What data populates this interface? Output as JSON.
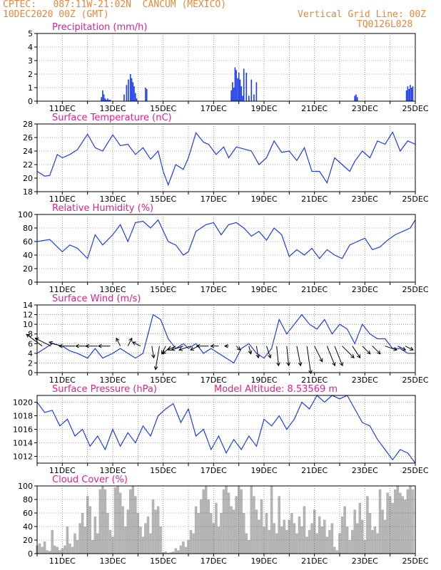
{
  "header": {
    "line1_left": "CPTEC:   087:11W-21:02N  CANCUM (MEXICO)",
    "line2_left": "10DEC2020 00Z (GMT)",
    "line1_right": "Vertical Grid Line: 00Z",
    "line2_right": "TQ0126L028"
  },
  "colors": {
    "header": "#e8873a",
    "title": "#e0208c",
    "line": "#1c3cf0",
    "cloud": "#b4b4b4",
    "grid": "#5a5a5a"
  },
  "x_axis": {
    "tick_labels": [
      "11DEC",
      "13DEC",
      "15DEC",
      "17DEC",
      "19DEC",
      "21DEC",
      "23DEC",
      "25DEC"
    ]
  },
  "chart_data": [
    {
      "type": "bar",
      "title": "Precipitation (mm/h)",
      "x_range": [
        "10DEC2020 00Z",
        "25DEC2020 00Z"
      ],
      "ylim": [
        0,
        5
      ],
      "yticks": [
        0,
        1,
        2,
        3,
        4,
        5
      ],
      "x_day": [
        2.55,
        2.6,
        2.65,
        2.7,
        2.75,
        2.8,
        2.85,
        2.9,
        3.45,
        3.55,
        3.62,
        3.7,
        3.75,
        3.8,
        3.85,
        3.9,
        3.95,
        4.3,
        4.35,
        7.7,
        7.75,
        7.8,
        7.85,
        7.9,
        7.95,
        8.0,
        8.05,
        8.1,
        8.15,
        8.2,
        8.3,
        8.4,
        8.5,
        8.6,
        8.7,
        12.6,
        12.65,
        12.7,
        14.65,
        14.7,
        14.75,
        14.8,
        14.85,
        14.9
      ],
      "values": [
        0.3,
        0.8,
        0.5,
        0.2,
        0.1,
        0.2,
        0.1,
        0.1,
        0.5,
        1.2,
        1.6,
        2.0,
        1.7,
        1.4,
        1.1,
        0.6,
        0.2,
        1.0,
        0.9,
        0.8,
        1.4,
        1.0,
        2.5,
        2.3,
        1.7,
        2.1,
        1.6,
        1.1,
        0.4,
        2.4,
        2.1,
        0.4,
        1.6,
        0.5,
        1.4,
        0.4,
        0.5,
        0.3,
        0.8,
        1.1,
        0.9,
        1.2,
        1.0,
        1.1
      ]
    },
    {
      "type": "line",
      "title": "Surface Temperature (nC)",
      "ylim": [
        18,
        28
      ],
      "yticks": [
        18,
        20,
        22,
        24,
        26,
        28
      ],
      "x_day": [
        0,
        0.3,
        0.5,
        0.8,
        1.0,
        1.3,
        1.6,
        2.0,
        2.3,
        2.6,
        3.0,
        3.3,
        3.6,
        3.9,
        4.2,
        4.5,
        4.8,
        5.0,
        5.2,
        5.5,
        5.8,
        6.0,
        6.3,
        6.6,
        6.8,
        7.1,
        7.4,
        7.6,
        7.9,
        8.2,
        8.5,
        8.8,
        9.1,
        9.4,
        9.7,
        10.0,
        10.3,
        10.6,
        10.9,
        11.2,
        11.5,
        11.8,
        12.1,
        12.4,
        12.6,
        12.9,
        13.2,
        13.5,
        13.8,
        14.1,
        14.4,
        14.7,
        15.0
      ],
      "values": [
        21,
        20.3,
        20.4,
        23.5,
        23.0,
        23.5,
        24.2,
        26.5,
        24.5,
        24.0,
        26.4,
        24.8,
        25.0,
        23.5,
        24.5,
        22.8,
        24.0,
        21.0,
        19.0,
        22.0,
        21.3,
        23.0,
        26.7,
        25.3,
        25.0,
        23.5,
        24.6,
        23.0,
        24.6,
        24.3,
        24.0,
        22.0,
        23.0,
        25.5,
        23.8,
        24.0,
        22.6,
        24.5,
        21.0,
        21.0,
        19.3,
        23.0,
        22.0,
        21.0,
        22.5,
        24.0,
        23.0,
        25.5,
        25.0,
        26.8,
        24.0,
        25.5,
        25.0
      ]
    },
    {
      "type": "line",
      "title": "Relative Humidity (%)",
      "ylim": [
        0,
        100
      ],
      "yticks": [
        0,
        20,
        40,
        60,
        80,
        100
      ],
      "x_day": [
        0,
        0.5,
        1.0,
        1.3,
        1.6,
        2.0,
        2.3,
        2.6,
        3.0,
        3.3,
        3.6,
        3.9,
        4.2,
        4.5,
        4.8,
        5.2,
        5.5,
        5.8,
        6.0,
        6.3,
        6.7,
        7.0,
        7.3,
        7.6,
        7.9,
        8.2,
        8.5,
        8.8,
        9.1,
        9.4,
        9.7,
        10.0,
        10.3,
        10.6,
        10.9,
        11.2,
        11.5,
        11.8,
        12.1,
        12.4,
        12.7,
        13.0,
        13.3,
        13.6,
        13.9,
        14.2,
        14.5,
        14.8,
        15.0
      ],
      "values": [
        60,
        63,
        45,
        55,
        50,
        35,
        70,
        55,
        70,
        85,
        60,
        88,
        90,
        80,
        92,
        60,
        55,
        40,
        45,
        75,
        85,
        88,
        70,
        85,
        88,
        80,
        68,
        75,
        62,
        80,
        70,
        38,
        48,
        40,
        50,
        35,
        48,
        40,
        35,
        55,
        60,
        65,
        48,
        52,
        62,
        70,
        75,
        80,
        92
      ]
    },
    {
      "type": "line",
      "title": "Surface Wind (m/s)",
      "ylim": [
        0,
        14
      ],
      "yticks": [
        0,
        2,
        4,
        6,
        8,
        10,
        12,
        14
      ],
      "x_day": [
        0,
        0.3,
        0.6,
        1.0,
        1.3,
        1.6,
        2.0,
        2.3,
        2.6,
        3.0,
        3.3,
        3.6,
        3.9,
        4.2,
        4.4,
        4.6,
        4.9,
        5.2,
        5.5,
        5.8,
        6.0,
        6.3,
        6.6,
        6.9,
        7.2,
        7.5,
        7.8,
        8.1,
        8.4,
        8.7,
        9.0,
        9.3,
        9.6,
        9.9,
        10.2,
        10.5,
        10.8,
        11.1,
        11.4,
        11.7,
        12.0,
        12.3,
        12.6,
        12.9,
        13.2,
        13.5,
        13.8,
        14.1,
        14.4,
        14.7,
        15.0
      ],
      "values": [
        4,
        5,
        6,
        5.5,
        4.5,
        4,
        3,
        5,
        3,
        4,
        5,
        4,
        3,
        4,
        8,
        12,
        11,
        7,
        5,
        6,
        5,
        6,
        4,
        5,
        4,
        3,
        2,
        5,
        6,
        4,
        3,
        5,
        11,
        8,
        10,
        12,
        10,
        9,
        11,
        8,
        10,
        9,
        6,
        10,
        8,
        7,
        7,
        5,
        5,
        4,
        4
      ]
    },
    {
      "type": "line",
      "title": "Surface Pressure (hPa)",
      "annotation": "Model Altitude: 8.53569 m",
      "ylim": [
        1011,
        1021
      ],
      "yticks": [
        1012,
        1014,
        1016,
        1018,
        1020
      ],
      "x_day": [
        0,
        0.3,
        0.6,
        0.9,
        1.2,
        1.5,
        1.8,
        2.1,
        2.4,
        2.7,
        3.0,
        3.3,
        3.6,
        3.9,
        4.2,
        4.5,
        4.8,
        5.1,
        5.4,
        5.7,
        6.0,
        6.3,
        6.6,
        6.9,
        7.2,
        7.5,
        7.8,
        8.1,
        8.4,
        8.7,
        9.0,
        9.3,
        9.6,
        9.9,
        10.2,
        10.5,
        10.8,
        11.1,
        11.4,
        11.7,
        12.0,
        12.3,
        12.6,
        12.9,
        13.2,
        13.5,
        13.8,
        14.1,
        14.4,
        14.7,
        15.0
      ],
      "values": [
        1020,
        1018.5,
        1018.8,
        1016.5,
        1017.5,
        1015,
        1016,
        1013.5,
        1015,
        1013,
        1016,
        1013.5,
        1015.5,
        1014,
        1016.5,
        1015,
        1018,
        1019,
        1019.8,
        1017,
        1019,
        1015,
        1016,
        1013,
        1015,
        1012.5,
        1014.5,
        1013,
        1015,
        1013.5,
        1017.5,
        1016.5,
        1018,
        1016,
        1017.5,
        1020,
        1019,
        1021.5,
        1020,
        1021.5,
        1020.5,
        1021,
        1019,
        1017,
        1016.5,
        1014.5,
        1013,
        1011.5,
        1013,
        1012.5,
        1011
      ]
    },
    {
      "type": "bar",
      "title": "Cloud Cover (%)",
      "ylim": [
        0,
        100
      ],
      "yticks": [
        0,
        20,
        40,
        60,
        80,
        100
      ],
      "x_day": [
        0.0,
        0.1,
        0.2,
        0.3,
        0.4,
        0.5,
        0.6,
        0.7,
        0.8,
        0.9,
        1.0,
        1.1,
        1.2,
        1.3,
        1.4,
        1.5,
        1.6,
        1.7,
        1.8,
        1.9,
        2.0,
        2.1,
        2.2,
        2.3,
        2.4,
        2.5,
        2.6,
        2.7,
        2.8,
        2.9,
        3.0,
        3.1,
        3.2,
        3.3,
        3.4,
        3.5,
        3.6,
        3.7,
        3.8,
        3.9,
        4.0,
        4.1,
        4.2,
        4.3,
        4.4,
        4.5,
        4.6,
        4.7,
        4.8,
        4.9,
        5.0,
        5.1,
        5.2,
        5.3,
        5.4,
        5.5,
        5.6,
        5.7,
        5.8,
        5.9,
        6.0,
        6.1,
        6.2,
        6.3,
        6.4,
        6.5,
        6.6,
        6.7,
        6.8,
        6.9,
        7.0,
        7.1,
        7.2,
        7.3,
        7.4,
        7.5,
        7.6,
        7.7,
        7.8,
        7.9,
        8.0,
        8.1,
        8.2,
        8.3,
        8.4,
        8.5,
        8.6,
        8.7,
        8.8,
        8.9,
        9.0,
        9.1,
        9.2,
        9.3,
        9.4,
        9.5,
        9.6,
        9.7,
        9.8,
        9.9,
        10.0,
        10.1,
        10.2,
        10.3,
        10.4,
        10.5,
        10.6,
        10.7,
        10.8,
        10.9,
        11.0,
        11.1,
        11.2,
        11.3,
        11.4,
        11.5,
        11.6,
        11.7,
        11.8,
        11.9,
        12.0,
        12.1,
        12.2,
        12.3,
        12.4,
        12.5,
        12.6,
        12.7,
        12.8,
        12.9,
        13.0,
        13.1,
        13.2,
        13.3,
        13.4,
        13.5,
        13.6,
        13.7,
        13.8,
        13.9,
        14.0,
        14.1,
        14.2,
        14.3,
        14.4,
        14.5,
        14.6,
        14.7,
        14.8,
        14.9
      ],
      "values": [
        12,
        15,
        10,
        18,
        5,
        4,
        35,
        12,
        10,
        5,
        8,
        12,
        40,
        15,
        10,
        30,
        20,
        45,
        60,
        40,
        85,
        70,
        20,
        55,
        30,
        95,
        100,
        95,
        60,
        35,
        25,
        98,
        100,
        90,
        70,
        40,
        65,
        95,
        100,
        85,
        60,
        40,
        25,
        45,
        55,
        30,
        80,
        65,
        70,
        40,
        2,
        3,
        1,
        2,
        3,
        8,
        5,
        12,
        18,
        10,
        20,
        35,
        30,
        70,
        60,
        80,
        95,
        100,
        80,
        60,
        45,
        75,
        40,
        60,
        95,
        100,
        90,
        70,
        65,
        85,
        100,
        95,
        60,
        30,
        20,
        100,
        85,
        65,
        50,
        80,
        40,
        60,
        35,
        100,
        45,
        30,
        85,
        40,
        50,
        35,
        50,
        60,
        45,
        30,
        55,
        40,
        70,
        25,
        35,
        45,
        65,
        30,
        55,
        40,
        50,
        25,
        35,
        45,
        10,
        5,
        30,
        55,
        70,
        40,
        20,
        35,
        65,
        45,
        75,
        50,
        20,
        85,
        60,
        35,
        40,
        30,
        95,
        65,
        50,
        90,
        85,
        75,
        95,
        100,
        90,
        85,
        80,
        95,
        100,
        95
      ]
    }
  ],
  "wind_vectors": {
    "x_day": [
      0.2,
      0.55,
      0.95,
      1.5,
      2.0,
      2.4,
      2.9,
      3.3,
      3.6,
      4.1,
      4.55,
      4.85,
      5.1,
      5.3,
      5.5,
      5.8,
      6.1,
      6.4,
      6.8,
      7.2,
      7.6,
      7.9,
      8.4,
      8.7,
      9.1,
      9.5,
      9.9,
      10.3,
      10.7,
      11.0,
      11.5,
      11.8,
      12.1,
      12.5,
      12.9,
      13.3,
      13.8,
      14.3,
      14.6
    ],
    "u_ms": [
      4,
      4,
      3,
      4,
      3,
      3,
      3,
      1,
      -1,
      2,
      -0.5,
      1,
      1,
      2,
      2,
      3,
      3,
      2,
      3,
      2,
      1,
      -1,
      -0.5,
      -0.5,
      -1,
      -0.5,
      -0.5,
      -1,
      -1,
      -2,
      -2,
      -2,
      -3,
      -2,
      -2,
      -2,
      -3,
      -2,
      -2
    ],
    "v_ms": [
      3,
      2,
      1,
      0,
      0,
      0,
      0,
      2,
      2,
      1,
      -3,
      -6,
      -2,
      -2,
      -1,
      -1,
      -1,
      -1,
      0,
      0,
      0,
      -1,
      -2,
      -3,
      -3,
      -5,
      -5,
      -5,
      -7,
      -4,
      -5,
      -5,
      -3,
      -3,
      -2,
      -2,
      -1,
      -1,
      -1
    ]
  }
}
